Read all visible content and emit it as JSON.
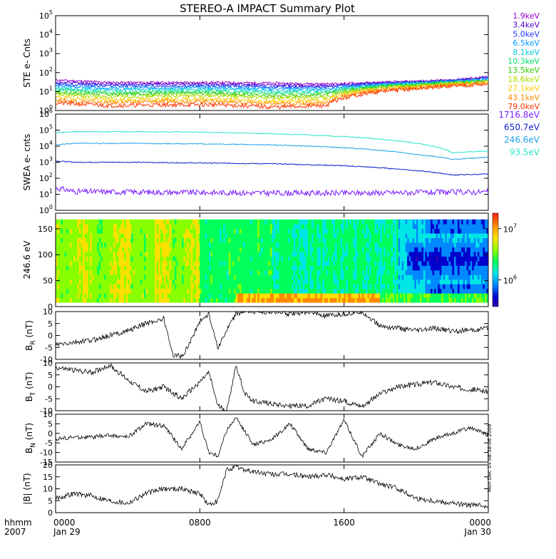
{
  "title": "STEREO-A IMPACT Summary Plot",
  "stamp": "Mon Dec 14 08:38:06 2009",
  "time_axis": {
    "ticks": [
      {
        "hhmm": "0000",
        "date": "Jan 29"
      },
      {
        "hhmm": "0800",
        "date": ""
      },
      {
        "hhmm": "1600",
        "date": ""
      },
      {
        "hhmm": "0000",
        "date": "Jan 30"
      }
    ],
    "row_labels": [
      "hhmm",
      "2007"
    ]
  },
  "colors": {
    "ste": [
      "#9900cc",
      "#4b00cc",
      "#1a33ff",
      "#0099ff",
      "#00ccdd",
      "#00dd66",
      "#33cc00",
      "#aadd00",
      "#ffcc00",
      "#ff8800",
      "#ff3300"
    ],
    "swea": [
      "#7a1fff",
      "#0a1fcc",
      "#1fa3e6",
      "#2ce6c8"
    ],
    "colorbar": [
      "#ff1a1a",
      "#ff8a00",
      "#ffe000",
      "#88ff00",
      "#00ff5a",
      "#00e6e6",
      "#0088ff",
      "#0000cc",
      "#3a00aa"
    ]
  },
  "chart_data": [
    {
      "type": "line",
      "panel": "STE",
      "ylabel": "STE e- Cnts",
      "yscale": "log",
      "yticks": [
        "10^0",
        "10^1",
        "10^2",
        "10^3",
        "10^4",
        "10^5"
      ],
      "ylim": [
        1,
        100000
      ],
      "x_hours": [
        0,
        24
      ],
      "legend": {
        "placement": "right",
        "entries": [
          "1.9keV",
          "3.4keV",
          "5.0keV",
          "6.5keV",
          "8.1keV",
          "10.3keV",
          "13.5keV",
          "18.6keV",
          "27.1keV",
          "43.1keV",
          "79.0keV"
        ]
      },
      "series": [
        {
          "name": "1.9keV",
          "x": [
            0,
            3,
            6,
            9,
            12,
            15,
            18,
            20,
            22,
            24
          ],
          "values": [
            40,
            30,
            30,
            30,
            28,
            25,
            30,
            35,
            40,
            60
          ]
        },
        {
          "name": "3.4keV",
          "x": [
            0,
            3,
            6,
            9,
            12,
            15,
            18,
            20,
            22,
            24
          ],
          "values": [
            30,
            25,
            25,
            25,
            22,
            20,
            28,
            33,
            38,
            55
          ]
        },
        {
          "name": "5.0keV",
          "x": [
            0,
            3,
            6,
            9,
            12,
            15,
            18,
            20,
            22,
            24
          ],
          "values": [
            25,
            20,
            20,
            20,
            18,
            17,
            26,
            30,
            36,
            50
          ]
        },
        {
          "name": "6.5keV",
          "x": [
            0,
            3,
            6,
            9,
            12,
            15,
            18,
            20,
            22,
            24
          ],
          "values": [
            20,
            15,
            16,
            16,
            14,
            14,
            24,
            28,
            34,
            45
          ]
        },
        {
          "name": "8.1keV",
          "x": [
            0,
            3,
            6,
            9,
            12,
            15,
            18,
            20,
            22,
            24
          ],
          "values": [
            15,
            12,
            13,
            13,
            11,
            11,
            22,
            26,
            32,
            40
          ]
        },
        {
          "name": "10.3keV",
          "x": [
            0,
            3,
            6,
            9,
            12,
            15,
            18,
            20,
            22,
            24
          ],
          "values": [
            12,
            9,
            10,
            10,
            8,
            9,
            20,
            24,
            30,
            38
          ]
        },
        {
          "name": "13.5keV",
          "x": [
            0,
            3,
            6,
            9,
            12,
            15,
            18,
            20,
            22,
            24
          ],
          "values": [
            9,
            7,
            8,
            8,
            6,
            7,
            18,
            22,
            28,
            35
          ]
        },
        {
          "name": "18.6keV",
          "x": [
            0,
            3,
            6,
            9,
            12,
            15,
            18,
            20,
            22,
            24
          ],
          "values": [
            7,
            5,
            6,
            6,
            4.5,
            5,
            16,
            20,
            26,
            32
          ]
        },
        {
          "name": "27.1keV",
          "x": [
            0,
            3,
            6,
            9,
            12,
            15,
            18,
            20,
            22,
            24
          ],
          "values": [
            5,
            3.5,
            4,
            4,
            3,
            3.5,
            14,
            18,
            24,
            30
          ]
        },
        {
          "name": "43.1keV",
          "x": [
            0,
            3,
            6,
            9,
            12,
            15,
            18,
            20,
            22,
            24
          ],
          "values": [
            3.5,
            2.5,
            3,
            3,
            2.2,
            2.5,
            12,
            16,
            22,
            28
          ]
        },
        {
          "name": "79.0keV",
          "x": [
            0,
            3,
            6,
            9,
            12,
            15,
            18,
            20,
            22,
            24
          ],
          "values": [
            2.5,
            1.8,
            2,
            2,
            1.5,
            1.8,
            10,
            14,
            20,
            25
          ]
        }
      ]
    },
    {
      "type": "line",
      "panel": "SWEA",
      "ylabel": "SWEA e- cnts",
      "yscale": "log",
      "yticks": [
        "10^0",
        "10^1",
        "10^2",
        "10^3",
        "10^4",
        "10^5",
        "10^6"
      ],
      "ylim": [
        1,
        1000000
      ],
      "x_hours": [
        0,
        24
      ],
      "legend": {
        "placement": "right",
        "entries": [
          "1716.8eV",
          "650.7eV",
          "246.6eV",
          "93.5eV"
        ]
      },
      "series": [
        {
          "name": "1716.8eV",
          "x": [
            0,
            1,
            4,
            8,
            12,
            16,
            20,
            24
          ],
          "values": [
            25,
            15,
            14,
            13,
            12,
            12,
            13,
            14
          ]
        },
        {
          "name": "650.7eV",
          "x": [
            0,
            1,
            4,
            8,
            12,
            16,
            20,
            22,
            24
          ],
          "values": [
            1200,
            1000,
            1000,
            900,
            800,
            600,
            300,
            160,
            180
          ]
        },
        {
          "name": "246.6eV",
          "x": [
            0,
            1,
            4,
            8,
            12,
            16,
            20,
            22,
            24
          ],
          "values": [
            12000,
            15000,
            15000,
            14000,
            12000,
            8000,
            3000,
            1500,
            2000
          ]
        },
        {
          "name": "93.5eV",
          "x": [
            0,
            1,
            4,
            8,
            12,
            16,
            20,
            22,
            24
          ],
          "values": [
            70000,
            80000,
            80000,
            75000,
            60000,
            40000,
            15000,
            4000,
            5000
          ]
        }
      ]
    },
    {
      "type": "heatmap",
      "panel": "PAD",
      "ylabel": "246.6 eV",
      "yticks": [
        "0",
        "50",
        "100",
        "150"
      ],
      "ylim": [
        0,
        180
      ],
      "x_hours": [
        0,
        24
      ],
      "colorbar": {
        "scale": "log",
        "ticks": [
          "10^7",
          "10^6"
        ],
        "range": [
          300000,
          20000000
        ]
      }
    },
    {
      "type": "line",
      "panel": "BR",
      "ylabel": "B_R (nT)",
      "yticks": [
        "-10",
        "-5",
        "0",
        "5",
        "10"
      ],
      "ylim": [
        -10,
        10
      ],
      "x": [
        0,
        1,
        2,
        3,
        4,
        5,
        6,
        6.5,
        7,
        7.5,
        8,
        8.5,
        9,
        9.5,
        10,
        10.5,
        11,
        12,
        13,
        14,
        15,
        16,
        17,
        18,
        19,
        20,
        21,
        22,
        23,
        24
      ],
      "values": [
        -4,
        -3,
        -2,
        0,
        2,
        5,
        7,
        -8,
        -9,
        -2,
        6,
        9,
        -5,
        2,
        9,
        10,
        10,
        10,
        9,
        10,
        8,
        9,
        10,
        4,
        3,
        2,
        3,
        2,
        2,
        3
      ]
    },
    {
      "type": "line",
      "panel": "BT",
      "ylabel": "B_T (nT)",
      "yticks": [
        "-10",
        "-5",
        "0",
        "5",
        "10"
      ],
      "ylim": [
        -10,
        10
      ],
      "x": [
        0,
        1,
        2,
        3,
        4,
        5,
        6,
        7,
        8,
        8.5,
        9,
        9.5,
        10,
        10.5,
        11,
        12,
        13,
        14,
        15,
        16,
        17,
        18,
        19,
        20,
        21,
        22,
        23,
        24
      ],
      "values": [
        8,
        7,
        6,
        9,
        3,
        -2,
        0,
        -5,
        2,
        6,
        -8,
        -10,
        9,
        -3,
        -6,
        -7,
        -8,
        -8,
        -5,
        -6,
        -8,
        -3,
        0,
        1,
        2,
        0,
        -1,
        -2
      ]
    },
    {
      "type": "line",
      "panel": "BN",
      "ylabel": "B_N (nT)",
      "yticks": [
        "-15",
        "-10",
        "-5",
        "0",
        "5",
        "10"
      ],
      "ylim": [
        -15,
        10
      ],
      "x": [
        0,
        1,
        2,
        3,
        4,
        5,
        6,
        7,
        8,
        8.5,
        9,
        9.5,
        10,
        11,
        12,
        13,
        14,
        15,
        16,
        17,
        18,
        19,
        20,
        21,
        22,
        23,
        24
      ],
      "values": [
        -3,
        -2,
        -2,
        -1,
        -2,
        5,
        4,
        -8,
        6,
        -10,
        -12,
        2,
        8,
        -6,
        -3,
        5,
        -8,
        -10,
        7,
        -12,
        0,
        -6,
        -8,
        -3,
        0,
        3,
        -1
      ]
    },
    {
      "type": "line",
      "panel": "B",
      "ylabel": "|B| (nT)",
      "yticks": [
        "0",
        "5",
        "10",
        "15",
        "20"
      ],
      "ylim": [
        0,
        20
      ],
      "x": [
        0,
        1,
        2,
        3,
        4,
        5,
        6,
        7,
        8,
        8.5,
        9,
        9.5,
        10,
        11,
        12,
        13,
        14,
        15,
        16,
        17,
        18,
        19,
        20,
        21,
        22,
        23,
        24
      ],
      "values": [
        6,
        8,
        7,
        5,
        4,
        8,
        10,
        10,
        8,
        3,
        5,
        18,
        19,
        17,
        16,
        16,
        15,
        16,
        14,
        15,
        12,
        10,
        6,
        5,
        4,
        3,
        3
      ]
    }
  ]
}
